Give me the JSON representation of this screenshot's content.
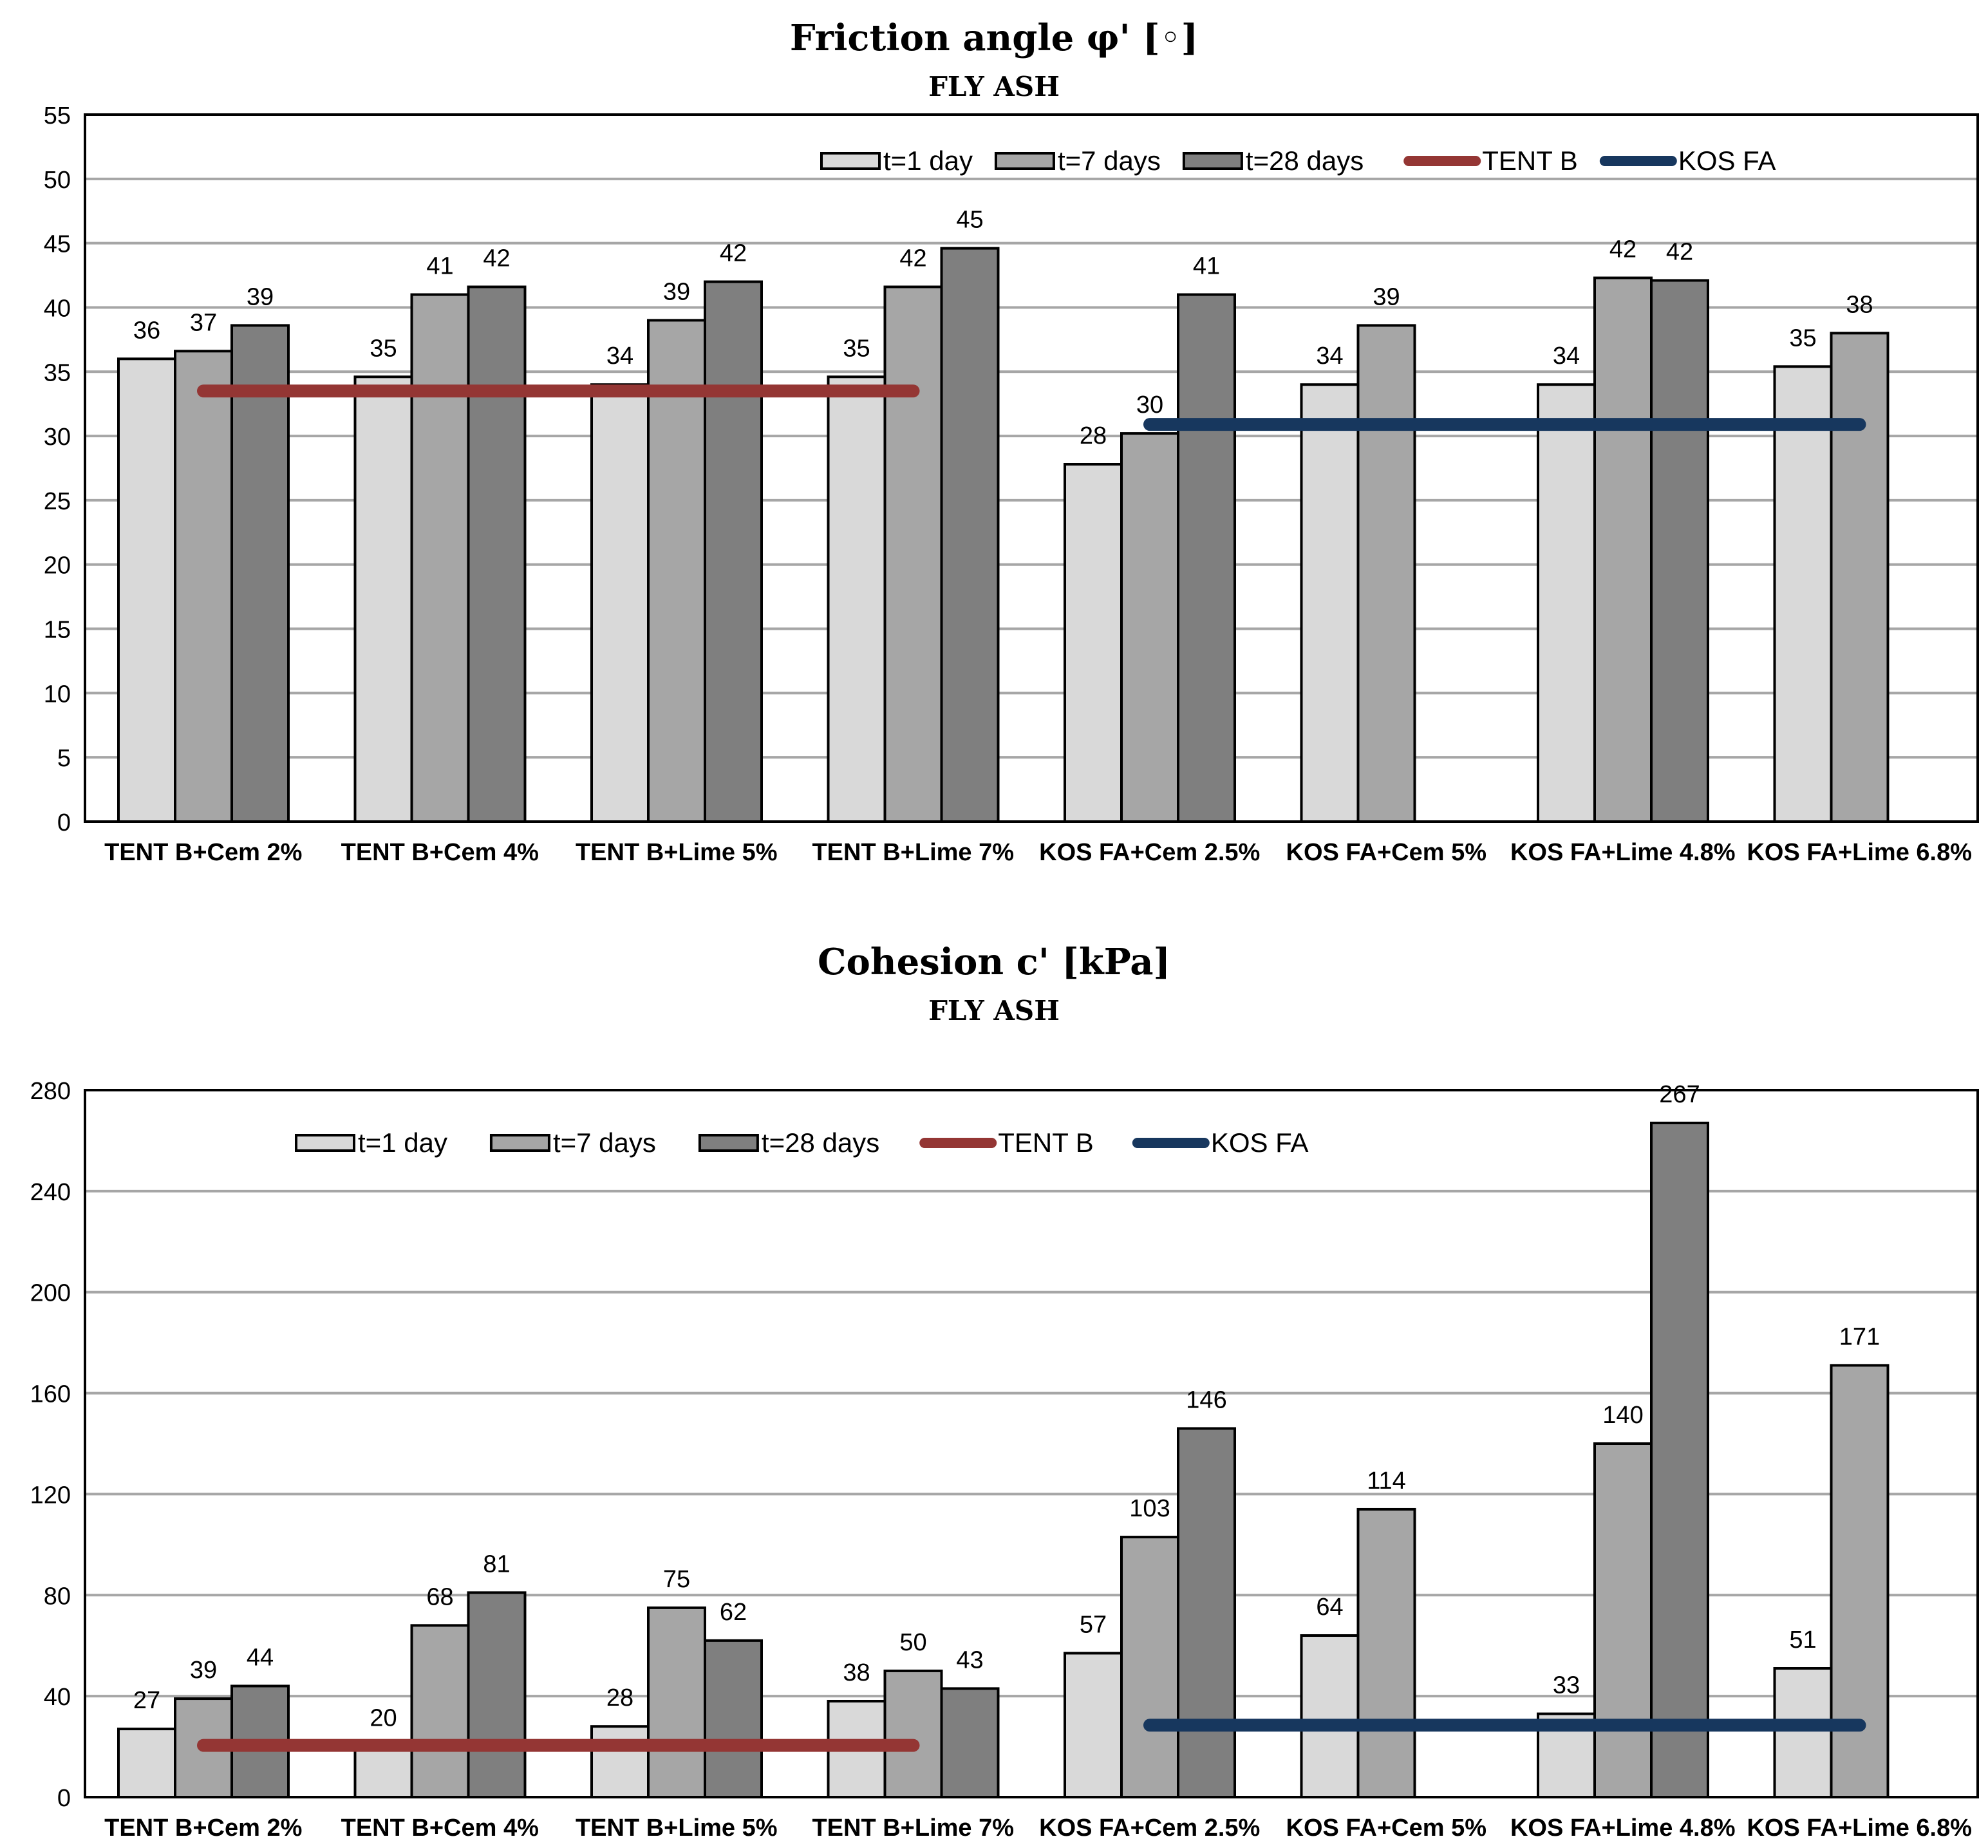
{
  "chart_data": [
    {
      "type": "bar",
      "title": "Friction angle φ'  [◦]",
      "subtitle": "FLY ASH",
      "xlabel": "",
      "ylabel": "",
      "ylim": [
        0,
        55
      ],
      "yticks": [
        "0",
        "5",
        "10",
        "15",
        "20",
        "25",
        "30",
        "35",
        "40",
        "45",
        "50",
        "55"
      ],
      "grid": true,
      "legend_position": "top-right",
      "categories": [
        "TENT B+Cem 2%",
        "TENT B+Cem 4%",
        "TENT B+Lime 5%",
        "TENT B+Lime 7%",
        "KOS FA+Cem 2.5%",
        "KOS FA+Cem 5%",
        "KOS FA+Lime 4.8%",
        "KOS FA+Lime 6.8%"
      ],
      "series": [
        {
          "name": "t=1 day",
          "color": "#d9d9d9",
          "values": [
            36,
            34.6,
            34,
            34.6,
            27.8,
            34,
            34,
            35.4
          ],
          "labels": [
            "36",
            "35",
            "34",
            "35",
            "28",
            "34",
            "34",
            "35"
          ]
        },
        {
          "name": "t=7 days",
          "color": "#a6a6a6",
          "values": [
            36.6,
            41,
            39,
            41.6,
            30.2,
            38.6,
            42.3,
            38
          ],
          "labels": [
            "37",
            "41",
            "39",
            "42",
            "30",
            "39",
            "42",
            "38"
          ]
        },
        {
          "name": "t=28 days",
          "color": "#7f7f7f",
          "values": [
            38.6,
            41.6,
            42,
            44.6,
            41,
            null,
            42.1,
            null
          ],
          "labels": [
            "39",
            "42",
            "42",
            "45",
            "41",
            "",
            "42",
            ""
          ]
        }
      ],
      "reference_lines": [
        {
          "name": "TENT B",
          "color": "#943634",
          "value": 33.5,
          "from_category": 0,
          "to_category": 3
        },
        {
          "name": "KOS FA",
          "color": "#17375e",
          "value": 30.9,
          "from_category": 4,
          "to_category": 7
        }
      ]
    },
    {
      "type": "bar",
      "title": "Cohesion c' [kPa]",
      "subtitle": "FLY ASH",
      "xlabel": "",
      "ylabel": "",
      "ylim": [
        0,
        280
      ],
      "yticks": [
        "0",
        "40",
        "80",
        "120",
        "160",
        "200",
        "240",
        "280"
      ],
      "grid": true,
      "legend_position": "top-left",
      "categories": [
        "TENT B+Cem 2%",
        "TENT B+Cem 4%",
        "TENT B+Lime 5%",
        "TENT B+Lime 7%",
        "KOS FA+Cem 2.5%",
        "KOS FA+Cem 5%",
        "KOS FA+Lime 4.8%",
        "KOS FA+Lime 6.8%"
      ],
      "series": [
        {
          "name": "t=1 day",
          "color": "#d9d9d9",
          "values": [
            27,
            20,
            28,
            38,
            57,
            64,
            33,
            51
          ],
          "labels": [
            "27",
            "20",
            "28",
            "38",
            "57",
            "64",
            "33",
            "51"
          ]
        },
        {
          "name": "t=7 days",
          "color": "#a6a6a6",
          "values": [
            39,
            68,
            75,
            50,
            103,
            114,
            140,
            171
          ],
          "labels": [
            "39",
            "68",
            "75",
            "50",
            "103",
            "114",
            "140",
            "171"
          ]
        },
        {
          "name": "t=28 days",
          "color": "#7f7f7f",
          "values": [
            44,
            81,
            62,
            43,
            146,
            null,
            267,
            null
          ],
          "labels": [
            "44",
            "81",
            "62",
            "43",
            "146",
            "",
            "267",
            ""
          ]
        }
      ],
      "reference_lines": [
        {
          "name": "TENT B",
          "color": "#943634",
          "value": 20.5,
          "from_category": 0,
          "to_category": 3
        },
        {
          "name": "KOS FA",
          "color": "#17375e",
          "value": 28.5,
          "from_category": 4,
          "to_category": 7
        }
      ]
    }
  ]
}
